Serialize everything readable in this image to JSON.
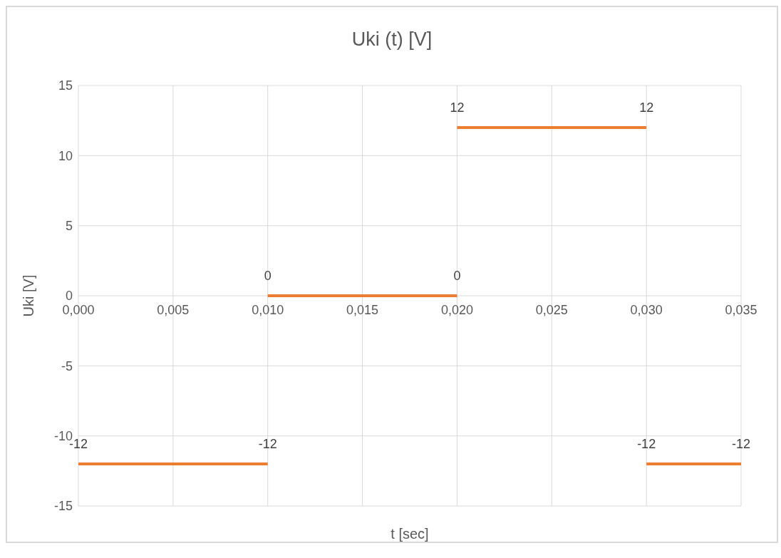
{
  "chart_data": {
    "type": "line",
    "title": "Uki (t) [V]",
    "xlabel": "t [sec]",
    "ylabel": "Uki  [V]",
    "series": [
      {
        "color": "#ed7d31",
        "x": [
          0,
          0.01
        ],
        "values": [
          -12,
          -12
        ]
      },
      {
        "color": "#ed7d31",
        "x": [
          0.01,
          0.02
        ],
        "values": [
          0,
          0
        ]
      },
      {
        "color": "#ed7d31",
        "x": [
          0.02,
          0.03
        ],
        "values": [
          12,
          12
        ]
      },
      {
        "color": "#ed7d31",
        "x": [
          0.03,
          0.035
        ],
        "values": [
          -12,
          -12
        ]
      }
    ],
    "xlim": [
      0,
      0.035
    ],
    "xticks": [
      {
        "value": 0,
        "label": "0,000"
      },
      {
        "value": 0.005,
        "label": "0,005"
      },
      {
        "value": 0.01,
        "label": "0,010"
      },
      {
        "value": 0.015,
        "label": "0,015"
      },
      {
        "value": 0.02,
        "label": "0,020"
      },
      {
        "value": 0.025,
        "label": "0,025"
      },
      {
        "value": 0.03,
        "label": "0,030"
      },
      {
        "value": 0.035,
        "label": "0,035"
      }
    ],
    "ylim": [
      -15,
      15
    ],
    "yticks": [
      -15,
      -10,
      -5,
      0,
      5,
      10,
      15
    ],
    "grid": true,
    "data_labels": true,
    "marker": "none",
    "line_style": "solid"
  }
}
